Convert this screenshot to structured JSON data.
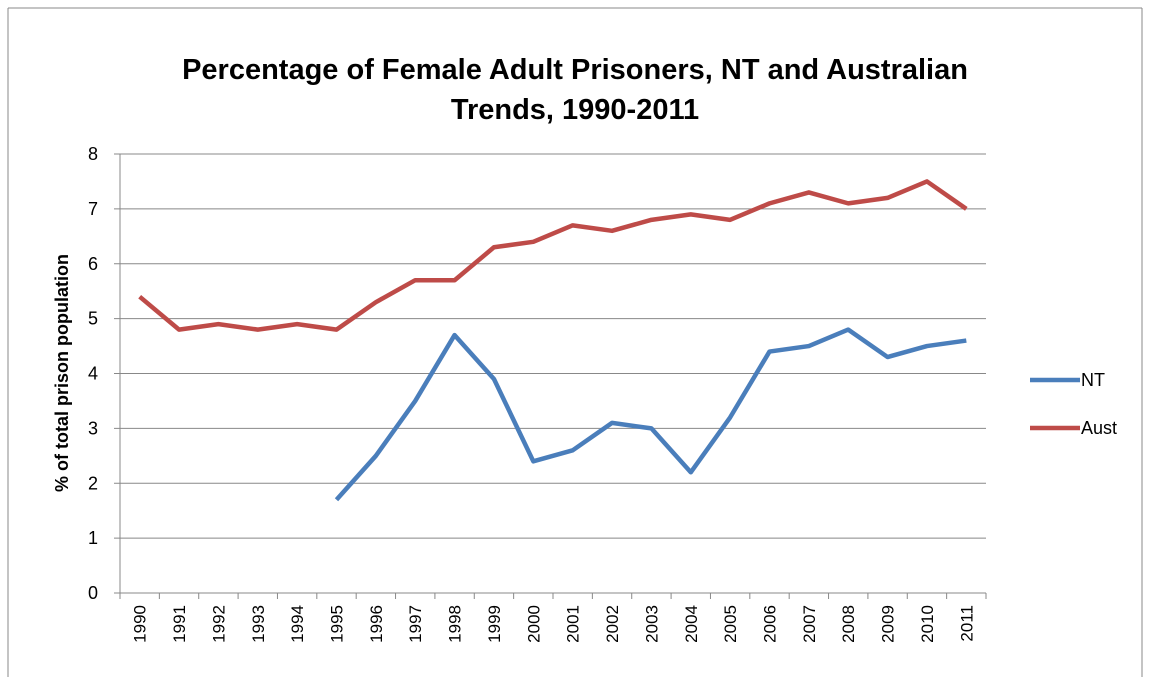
{
  "chart_data": {
    "type": "line",
    "title": "Percentage of Female Adult Prisoners, NT and Australian Trends, 1990-2011",
    "y_label": "% of total prison population",
    "categories": [
      "1990",
      "1991",
      "1992",
      "1993",
      "1994",
      "1995",
      "1996",
      "1997",
      "1998",
      "1999",
      "2000",
      "2001",
      "2002",
      "2003",
      "2004",
      "2005",
      "2006",
      "2007",
      "2008",
      "2009",
      "2010",
      "2011"
    ],
    "series": [
      {
        "name": "NT",
        "color": "#4a7ebb",
        "values": [
          null,
          null,
          null,
          null,
          null,
          1.7,
          2.5,
          3.5,
          4.7,
          3.9,
          2.4,
          2.6,
          3.1,
          3.0,
          2.2,
          3.2,
          4.4,
          4.5,
          4.8,
          4.3,
          4.5,
          4.6
        ]
      },
      {
        "name": "Aust",
        "color": "#be4b48",
        "values": [
          5.4,
          4.8,
          4.9,
          4.8,
          4.9,
          4.8,
          5.3,
          5.7,
          5.7,
          6.3,
          6.4,
          6.7,
          6.6,
          6.8,
          6.9,
          6.8,
          7.1,
          7.3,
          7.1,
          7.2,
          7.5,
          7.0
        ]
      }
    ],
    "ylim": [
      0,
      8
    ],
    "yticks": [
      0,
      1,
      2,
      3,
      4,
      5,
      6,
      7,
      8
    ],
    "grid": true,
    "legend": "right"
  }
}
